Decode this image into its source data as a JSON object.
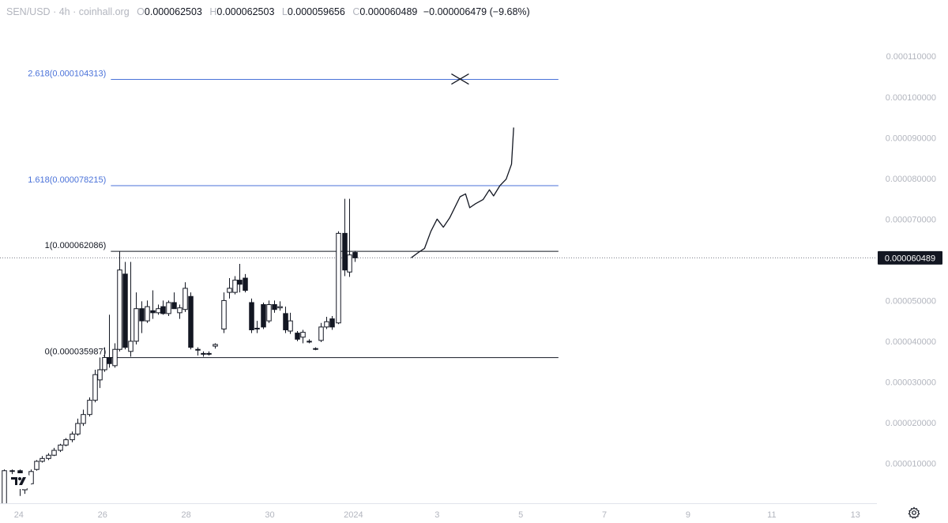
{
  "header": {
    "symbol": "SEN/USD",
    "timeframe": "4h",
    "source": "coinhall.org",
    "open_label": "O",
    "open": "0.000062503",
    "high_label": "H",
    "high": "0.000062503",
    "low_label": "L",
    "low": "0.000059656",
    "close_label": "C",
    "close": "0.000060489",
    "change": "−0.000006479 (−9.68%)"
  },
  "icons": {
    "logo": "tradingview-logo-icon",
    "settings": "gear-icon"
  },
  "colors": {
    "fib_blue": "#4a72d9",
    "fib_black": "#131722",
    "axis_text": "#b2b5be",
    "price_tag_bg": "#131722"
  },
  "chart_data": {
    "type": "candlestick",
    "title": "",
    "xlabel": "",
    "ylabel": "",
    "y_ticks": [
      "0.000010000",
      "0.000020000",
      "0.000030000",
      "0.000040000",
      "0.000050000",
      "0.000060000",
      "0.000070000",
      "0.000080000",
      "0.000090000",
      "0.000100000",
      "0.000110000"
    ],
    "y_tick_values": [
      1e-05,
      2e-05,
      3e-05,
      4e-05,
      5e-05,
      6e-05,
      7e-05,
      8e-05,
      9e-05,
      0.0001,
      0.00011
    ],
    "ylim": [
      2e-07,
      0.000118
    ],
    "x_ticks": [
      "24",
      "26",
      "28",
      "30",
      "2024",
      "3",
      "5",
      "7",
      "9",
      "11",
      "13"
    ],
    "x_tick_days": [
      24,
      26,
      28,
      30,
      32,
      34,
      36,
      38,
      40,
      42,
      44
    ],
    "xlim": [
      23.55,
      44.25
    ],
    "current_price": {
      "label": "0.000060489",
      "value": 6.0489e-05
    },
    "fib_levels": [
      {
        "label": "2.618(0.000104313)",
        "value": 0.000104313,
        "color": "blue"
      },
      {
        "label": "1.618(0.000078215)",
        "value": 7.8215e-05,
        "color": "blue"
      },
      {
        "label": "1(0.000062086)",
        "value": 6.2086e-05,
        "color": "black"
      },
      {
        "label": "0(0.000035987)",
        "value": 3.5987e-05,
        "color": "black"
      }
    ],
    "fib_x_range": [
      26.2,
      36.9
    ],
    "target_marker": {
      "day": 34.55,
      "value": 0.000104313
    },
    "projection_path": [
      [
        33.38,
        6.05e-05
      ],
      [
        33.55,
        6.18e-05
      ],
      [
        33.7,
        6.28e-05
      ],
      [
        33.85,
        6.7e-05
      ],
      [
        34.0,
        7e-05
      ],
      [
        34.15,
        6.8e-05
      ],
      [
        34.3,
        7.03e-05
      ],
      [
        34.55,
        7.55e-05
      ],
      [
        34.68,
        7.62e-05
      ],
      [
        34.78,
        7.28e-05
      ],
      [
        34.92,
        7.38e-05
      ],
      [
        35.1,
        7.48e-05
      ],
      [
        35.25,
        7.72e-05
      ],
      [
        35.35,
        7.57e-05
      ],
      [
        35.5,
        7.82e-05
      ],
      [
        35.65,
        7.98e-05
      ],
      [
        35.78,
        8.35e-05
      ],
      [
        35.83,
        9.25e-05
      ]
    ],
    "candles": [
      {
        "d": 23.65,
        "o": 1e-07,
        "h": 8.5e-06,
        "l": 1e-07,
        "c": 8.2e-06
      },
      {
        "d": 23.84,
        "o": 8.2e-06,
        "h": 8.5e-06,
        "l": 7e-06,
        "c": 8.2e-06
      },
      {
        "d": 24.02,
        "o": 8.2e-06,
        "h": 8.5e-06,
        "l": 2e-06,
        "c": 5e-06
      },
      {
        "d": 24.14,
        "o": 3.5e-06,
        "h": 5.5e-06,
        "l": 2.5e-06,
        "c": 5e-06
      },
      {
        "d": 24.28,
        "o": 5e-06,
        "h": 8.5e-06,
        "l": 4.8e-06,
        "c": 8e-06
      },
      {
        "d": 24.42,
        "o": 8.5e-06,
        "h": 1.08e-05,
        "l": 8.2e-06,
        "c": 1.05e-05
      },
      {
        "d": 24.56,
        "o": 1.05e-05,
        "h": 1.18e-05,
        "l": 1.02e-05,
        "c": 1.12e-05
      },
      {
        "d": 24.7,
        "o": 1.12e-05,
        "h": 1.25e-05,
        "l": 1.08e-05,
        "c": 1.2e-05
      },
      {
        "d": 24.84,
        "o": 1.2e-05,
        "h": 1.38e-05,
        "l": 1.18e-05,
        "c": 1.32e-05
      },
      {
        "d": 24.98,
        "o": 1.32e-05,
        "h": 1.48e-05,
        "l": 1.28e-05,
        "c": 1.45e-05
      },
      {
        "d": 25.12,
        "o": 1.45e-05,
        "h": 1.62e-05,
        "l": 1.42e-05,
        "c": 1.58e-05
      },
      {
        "d": 25.26,
        "o": 1.58e-05,
        "h": 1.78e-05,
        "l": 1.52e-05,
        "c": 1.72e-05
      },
      {
        "d": 25.4,
        "o": 1.72e-05,
        "h": 2.1e-05,
        "l": 1.68e-05,
        "c": 1.98e-05
      },
      {
        "d": 25.54,
        "o": 1.98e-05,
        "h": 2.32e-05,
        "l": 1.92e-05,
        "c": 2.2e-05
      },
      {
        "d": 25.68,
        "o": 2.2e-05,
        "h": 2.62e-05,
        "l": 2.15e-05,
        "c": 2.55e-05
      },
      {
        "d": 25.82,
        "o": 2.55e-05,
        "h": 3.3e-05,
        "l": 2.5e-05,
        "c": 3.18e-05
      },
      {
        "d": 25.93,
        "o": 3.05e-05,
        "h": 3.6e-05,
        "l": 2.85e-05,
        "c": 3.3e-05
      },
      {
        "d": 26.04,
        "o": 3.3e-05,
        "h": 3.85e-05,
        "l": 3.25e-05,
        "c": 3.6e-05
      },
      {
        "d": 26.16,
        "o": 3.6e-05,
        "h": 4.65e-05,
        "l": 3.35e-05,
        "c": 3.45e-05
      },
      {
        "d": 26.28,
        "o": 3.4e-05,
        "h": 3.95e-05,
        "l": 3.35e-05,
        "c": 3.8e-05
      },
      {
        "d": 26.41,
        "o": 3.8e-05,
        "h": 6.2e-05,
        "l": 3.75e-05,
        "c": 5.75e-05
      },
      {
        "d": 26.54,
        "o": 5.65e-05,
        "h": 5.95e-05,
        "l": 3.8e-05,
        "c": 3.85e-05
      },
      {
        "d": 26.67,
        "o": 3.75e-05,
        "h": 5.95e-05,
        "l": 3.62e-05,
        "c": 4e-05
      },
      {
        "d": 26.8,
        "o": 4e-05,
        "h": 5.2e-05,
        "l": 3.92e-05,
        "c": 4.8e-05
      },
      {
        "d": 26.93,
        "o": 4.8e-05,
        "h": 4.98e-05,
        "l": 4.2e-05,
        "c": 4.5e-05
      },
      {
        "d": 27.06,
        "o": 4.5e-05,
        "h": 5e-05,
        "l": 4.45e-05,
        "c": 4.85e-05
      },
      {
        "d": 27.19,
        "o": 4.75e-05,
        "h": 5.25e-05,
        "l": 4.55e-05,
        "c": 4.7e-05
      },
      {
        "d": 27.32,
        "o": 4.7e-05,
        "h": 4.9e-05,
        "l": 4.65e-05,
        "c": 4.8e-05
      },
      {
        "d": 27.45,
        "o": 4.85e-05,
        "h": 5e-05,
        "l": 4.65e-05,
        "c": 4.68e-05
      },
      {
        "d": 27.58,
        "o": 4.68e-05,
        "h": 5e-05,
        "l": 4.62e-05,
        "c": 4.95e-05
      },
      {
        "d": 27.71,
        "o": 4.95e-05,
        "h": 5.2e-05,
        "l": 4.8e-05,
        "c": 4.8e-05
      },
      {
        "d": 27.84,
        "o": 4.7e-05,
        "h": 4.9e-05,
        "l": 4.55e-05,
        "c": 4.82e-05
      },
      {
        "d": 27.97,
        "o": 4.78e-05,
        "h": 5.45e-05,
        "l": 4.72e-05,
        "c": 5.3e-05
      },
      {
        "d": 28.1,
        "o": 5.1e-05,
        "h": 5.2e-05,
        "l": 3.8e-05,
        "c": 3.85e-05
      },
      {
        "d": 28.27,
        "o": 3.8e-05,
        "h": 3.85e-05,
        "l": 3.65e-05,
        "c": 3.78e-05
      },
      {
        "d": 28.4,
        "o": 3.7e-05,
        "h": 3.75e-05,
        "l": 3.62e-05,
        "c": 3.68e-05
      },
      {
        "d": 28.53,
        "o": 3.7e-05,
        "h": 3.75e-05,
        "l": 3.65e-05,
        "c": 3.68e-05
      },
      {
        "d": 28.68,
        "o": 3.88e-05,
        "h": 3.95e-05,
        "l": 3.82e-05,
        "c": 3.92e-05
      },
      {
        "d": 28.89,
        "o": 4.3e-05,
        "h": 5.2e-05,
        "l": 4.2e-05,
        "c": 5e-05
      },
      {
        "d": 29.02,
        "o": 5.2e-05,
        "h": 5.55e-05,
        "l": 5.05e-05,
        "c": 5.3e-05
      },
      {
        "d": 29.15,
        "o": 5.2e-05,
        "h": 5.6e-05,
        "l": 5.15e-05,
        "c": 5.5e-05
      },
      {
        "d": 29.28,
        "o": 5.5e-05,
        "h": 5.9e-05,
        "l": 5.2e-05,
        "c": 5.4e-05
      },
      {
        "d": 29.41,
        "o": 5.55e-05,
        "h": 5.65e-05,
        "l": 5.2e-05,
        "c": 5.25e-05
      },
      {
        "d": 29.56,
        "o": 4.95e-05,
        "h": 5.05e-05,
        "l": 4.2e-05,
        "c": 4.28e-05
      },
      {
        "d": 29.69,
        "o": 4.32e-05,
        "h": 4.5e-05,
        "l": 4.2e-05,
        "c": 4.3e-05
      },
      {
        "d": 29.84,
        "o": 4.9e-05,
        "h": 4.95e-05,
        "l": 4.3e-05,
        "c": 4.35e-05
      },
      {
        "d": 29.97,
        "o": 4.5e-05,
        "h": 5e-05,
        "l": 4.45e-05,
        "c": 4.9e-05
      },
      {
        "d": 30.1,
        "o": 4.9e-05,
        "h": 5e-05,
        "l": 4.7e-05,
        "c": 4.78e-05
      },
      {
        "d": 30.23,
        "o": 4.82e-05,
        "h": 4.98e-05,
        "l": 4.75e-05,
        "c": 4.85e-05
      },
      {
        "d": 30.36,
        "o": 4.68e-05,
        "h": 4.85e-05,
        "l": 4.2e-05,
        "c": 4.28e-05
      },
      {
        "d": 30.49,
        "o": 4.25e-05,
        "h": 4.7e-05,
        "l": 4.18e-05,
        "c": 4.5e-05
      },
      {
        "d": 30.65,
        "o": 4.2e-05,
        "h": 4.25e-05,
        "l": 4e-05,
        "c": 4.05e-05
      },
      {
        "d": 30.78,
        "o": 4.1e-05,
        "h": 4.28e-05,
        "l": 3.95e-05,
        "c": 4.22e-05
      },
      {
        "d": 30.93,
        "o": 4e-05,
        "h": 4.05e-05,
        "l": 3.95e-05,
        "c": 3.98e-05
      },
      {
        "d": 31.08,
        "o": 3.8e-05,
        "h": 3.85e-05,
        "l": 3.78e-05,
        "c": 3.82e-05
      },
      {
        "d": 31.22,
        "o": 4.02e-05,
        "h": 4.45e-05,
        "l": 3.98e-05,
        "c": 4.35e-05
      },
      {
        "d": 31.35,
        "o": 4.35e-05,
        "h": 4.6e-05,
        "l": 4.3e-05,
        "c": 4.48e-05
      },
      {
        "d": 31.48,
        "o": 4.55e-05,
        "h": 4.62e-05,
        "l": 4.28e-05,
        "c": 4.35e-05
      },
      {
        "d": 31.63,
        "o": 4.45e-05,
        "h": 6.7e-05,
        "l": 4.42e-05,
        "c": 6.65e-05
      },
      {
        "d": 31.78,
        "o": 6.65e-05,
        "h": 7.5e-05,
        "l": 5.6e-05,
        "c": 5.75e-05
      },
      {
        "d": 31.9,
        "o": 5.7e-05,
        "h": 7.5e-05,
        "l": 5.58e-05,
        "c": 6.12e-05
      },
      {
        "d": 32.03,
        "o": 6.18e-05,
        "h": 6.22e-05,
        "l": 5.95e-05,
        "c": 6.0489e-05
      }
    ]
  }
}
